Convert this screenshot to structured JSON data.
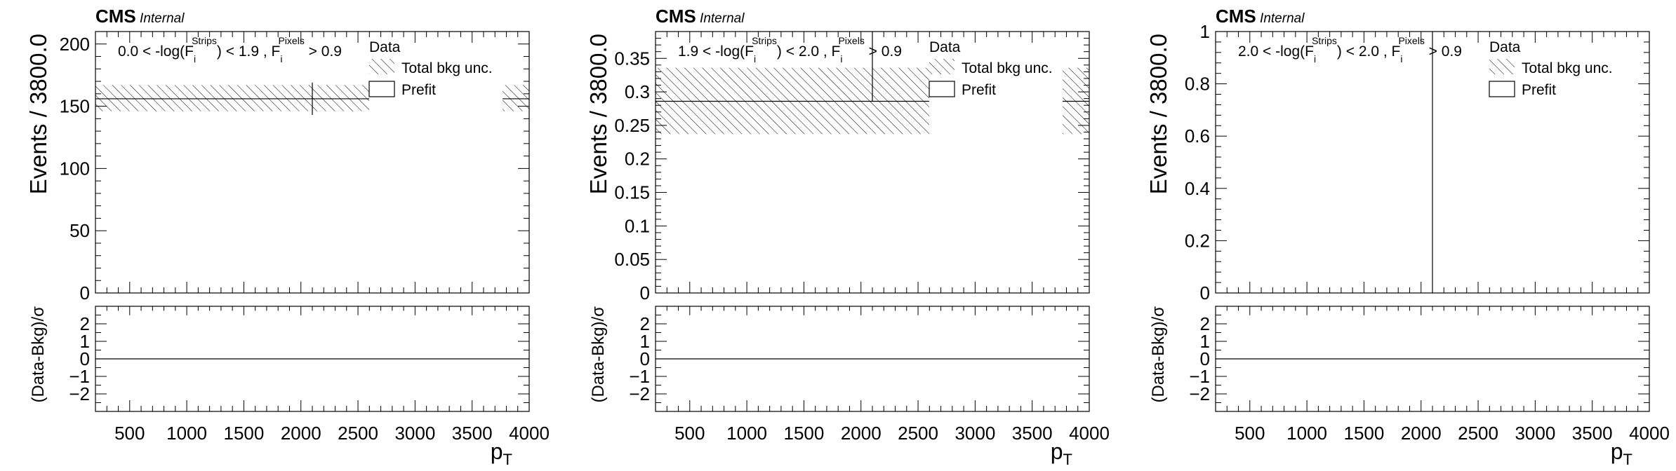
{
  "chart_data": [
    {
      "type": "histogram",
      "experiment": "CMS",
      "status": "Internal",
      "region_label": {
        "pre": "0.0 < -log(F",
        "sub1": "i",
        "sup1": "Strips",
        "mid": ") < 1.9 , F",
        "sub2": "i",
        "sup2": "Pixels",
        "post": " > 0.9"
      },
      "ylabel": "Events / 3800.0",
      "xlabel": "p",
      "xlabel_sub": "T",
      "ratio_ylabel": "(Data-Bkg)/σ",
      "xlim": [
        200,
        4000
      ],
      "ylim": [
        0,
        210
      ],
      "yticks": [
        {
          "v": 0,
          "label": "0"
        },
        {
          "v": 50,
          "label": "50"
        },
        {
          "v": 100,
          "label": "100"
        },
        {
          "v": 150,
          "label": "150"
        },
        {
          "v": 200,
          "label": "200"
        }
      ],
      "xticks": [
        {
          "v": 500,
          "label": "500"
        },
        {
          "v": 1000,
          "label": "1000"
        },
        {
          "v": 1500,
          "label": "1500"
        },
        {
          "v": 2000,
          "label": "2000"
        },
        {
          "v": 2500,
          "label": "2500"
        },
        {
          "v": 3000,
          "label": "3000"
        },
        {
          "v": 3500,
          "label": "3500"
        },
        {
          "v": 4000,
          "label": "4000"
        }
      ],
      "ratio_ylim": [
        -3,
        3
      ],
      "ratio_yticks": [
        {
          "v": -2,
          "label": "−2"
        },
        {
          "v": -1,
          "label": "−1"
        },
        {
          "v": 0,
          "label": "0"
        },
        {
          "v": 1,
          "label": "1"
        },
        {
          "v": 2,
          "label": "2"
        }
      ],
      "prefit_value": 156,
      "band": [
        146,
        167
      ],
      "data_point": {
        "x": 2100,
        "y": 156,
        "ylow": 143,
        "yhigh": 169
      },
      "ratio_values": [
        0
      ],
      "legend": {
        "data": "Data",
        "bkg_unc": "Total bkg unc.",
        "prefit": "Prefit"
      }
    },
    {
      "type": "histogram",
      "experiment": "CMS",
      "status": "Internal",
      "region_label": {
        "pre": "1.9 < -log(F",
        "sub1": "i",
        "sup1": "Strips",
        "mid": ") < 2.0 , F",
        "sub2": "i",
        "sup2": "Pixels",
        "post": " > 0.9"
      },
      "ylabel": "Events / 3800.0",
      "xlabel": "p",
      "xlabel_sub": "T",
      "ratio_ylabel": "(Data-Bkg)/σ",
      "xlim": [
        200,
        4000
      ],
      "ylim": [
        0,
        0.39
      ],
      "yticks": [
        {
          "v": 0,
          "label": "0"
        },
        {
          "v": 0.05,
          "label": "0.05"
        },
        {
          "v": 0.1,
          "label": "0.1"
        },
        {
          "v": 0.15,
          "label": "0.15"
        },
        {
          "v": 0.2,
          "label": "0.2"
        },
        {
          "v": 0.25,
          "label": "0.25"
        },
        {
          "v": 0.3,
          "label": "0.3"
        },
        {
          "v": 0.35,
          "label": "0.35"
        }
      ],
      "xticks": [
        {
          "v": 500,
          "label": "500"
        },
        {
          "v": 1000,
          "label": "1000"
        },
        {
          "v": 1500,
          "label": "1500"
        },
        {
          "v": 2000,
          "label": "2000"
        },
        {
          "v": 2500,
          "label": "2500"
        },
        {
          "v": 3000,
          "label": "3000"
        },
        {
          "v": 3500,
          "label": "3500"
        },
        {
          "v": 4000,
          "label": "4000"
        }
      ],
      "ratio_ylim": [
        -3,
        3
      ],
      "ratio_yticks": [
        {
          "v": -2,
          "label": "−2"
        },
        {
          "v": -1,
          "label": "−1"
        },
        {
          "v": 0,
          "label": "0"
        },
        {
          "v": 1,
          "label": "1"
        },
        {
          "v": 2,
          "label": "2"
        }
      ],
      "prefit_value": 0.286,
      "band": [
        0.237,
        0.336
      ],
      "data_point": {
        "x": 2100,
        "y": 0.286,
        "ylow": 0.286,
        "yhigh": 0.39
      },
      "ratio_values": [
        0
      ],
      "legend": {
        "data": "Data",
        "bkg_unc": "Total bkg unc.",
        "prefit": "Prefit"
      }
    },
    {
      "type": "histogram",
      "experiment": "CMS",
      "status": "Internal",
      "region_label": {
        "pre": "2.0 < -log(F",
        "sub1": "i",
        "sup1": "Strips",
        "mid": ") < 2.0 , F",
        "sub2": "i",
        "sup2": "Pixels",
        "post": " > 0.9"
      },
      "ylabel": "Events / 3800.0",
      "xlabel": "p",
      "xlabel_sub": "T",
      "ratio_ylabel": "(Data-Bkg)/σ",
      "xlim": [
        200,
        4000
      ],
      "ylim": [
        0,
        1
      ],
      "yticks": [
        {
          "v": 0,
          "label": "0"
        },
        {
          "v": 0.2,
          "label": "0.2"
        },
        {
          "v": 0.4,
          "label": "0.4"
        },
        {
          "v": 0.6,
          "label": "0.6"
        },
        {
          "v": 0.8,
          "label": "0.8"
        },
        {
          "v": 1,
          "label": "1"
        }
      ],
      "xticks": [
        {
          "v": 500,
          "label": "500"
        },
        {
          "v": 1000,
          "label": "1000"
        },
        {
          "v": 1500,
          "label": "1500"
        },
        {
          "v": 2000,
          "label": "2000"
        },
        {
          "v": 2500,
          "label": "2500"
        },
        {
          "v": 3000,
          "label": "3000"
        },
        {
          "v": 3500,
          "label": "3500"
        },
        {
          "v": 4000,
          "label": "4000"
        }
      ],
      "ratio_ylim": [
        -3,
        3
      ],
      "ratio_yticks": [
        {
          "v": -2,
          "label": "−2"
        },
        {
          "v": -1,
          "label": "−1"
        },
        {
          "v": 0,
          "label": "0"
        },
        {
          "v": 1,
          "label": "1"
        },
        {
          "v": 2,
          "label": "2"
        }
      ],
      "prefit_value": null,
      "band": null,
      "data_point": {
        "x": 2100,
        "y": 0,
        "ylow": 0,
        "yhigh": 1
      },
      "ratio_values": [
        0
      ],
      "legend": {
        "data": "Data",
        "bkg_unc": "Total bkg unc.",
        "prefit": "Prefit"
      }
    }
  ]
}
